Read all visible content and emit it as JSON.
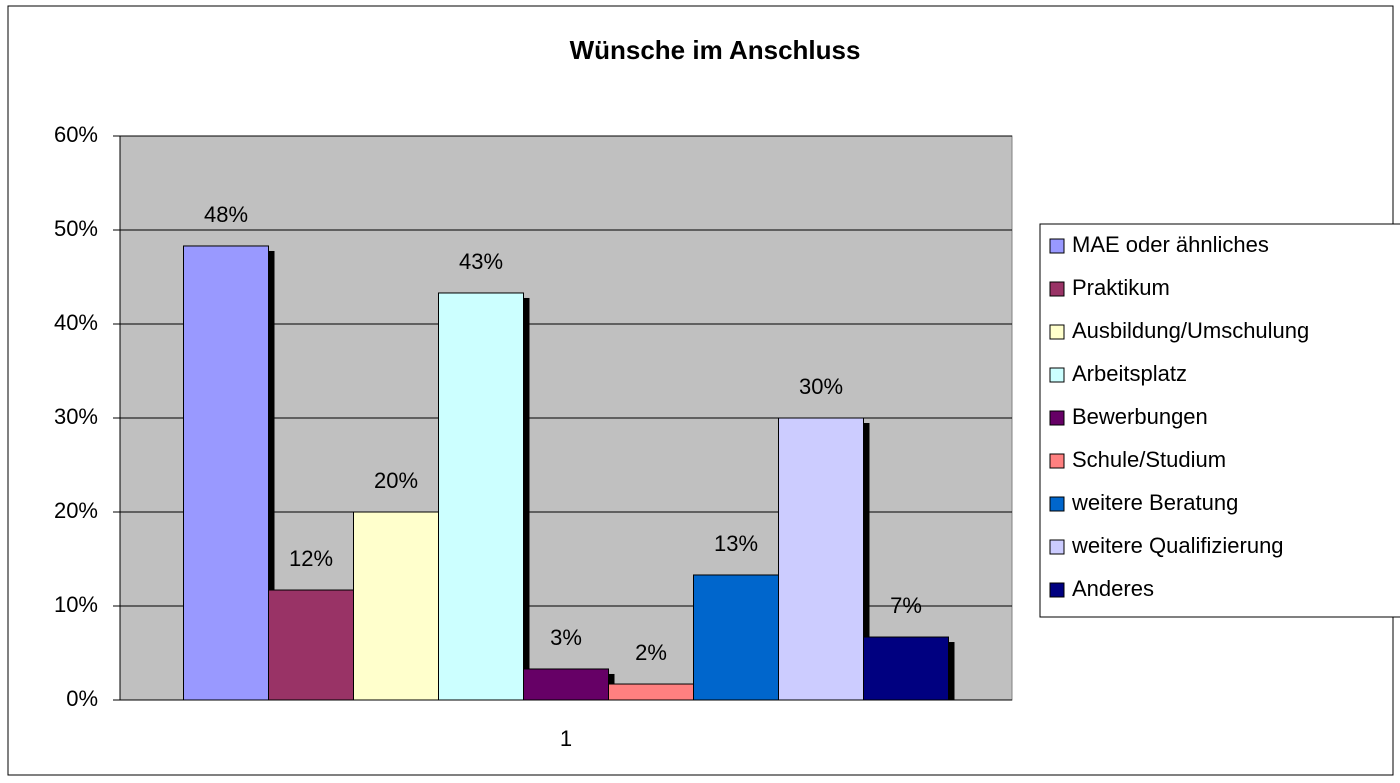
{
  "chart_data": {
    "type": "bar",
    "title": "Wünsche im  Anschluss",
    "categories": [
      "1"
    ],
    "series": [
      {
        "name": "MAE oder ähnliches",
        "color": "#9999ff",
        "values": [
          48.3
        ],
        "value_labels": [
          "48%"
        ]
      },
      {
        "name": "Praktikum",
        "color": "#993366",
        "values": [
          11.7
        ],
        "value_labels": [
          "12%"
        ]
      },
      {
        "name": "Ausbildung/Umschulung",
        "color": "#ffffcc",
        "values": [
          20
        ],
        "value_labels": [
          "20%"
        ]
      },
      {
        "name": "Arbeitsplatz",
        "color": "#ccffff",
        "values": [
          43.3
        ],
        "value_labels": [
          "43%"
        ]
      },
      {
        "name": "Bewerbungen",
        "color": "#660066",
        "values": [
          3.3
        ],
        "value_labels": [
          "3%"
        ]
      },
      {
        "name": "Schule/Studium",
        "color": "#ff8080",
        "values": [
          1.7
        ],
        "value_labels": [
          "2%"
        ]
      },
      {
        "name": "weitere Beratung",
        "color": "#0066cc",
        "values": [
          13.3
        ],
        "value_labels": [
          "13%"
        ]
      },
      {
        "name": "weitere Qualifizierung",
        "color": "#ccccff",
        "values": [
          30
        ],
        "value_labels": [
          "30%"
        ]
      },
      {
        "name": "Anderes",
        "color": "#000080",
        "values": [
          6.7
        ],
        "value_labels": [
          "7%"
        ]
      }
    ],
    "ylim": [
      0,
      60
    ],
    "yticks": [
      {
        "value": 0,
        "label": "0%"
      },
      {
        "value": 10,
        "label": "10%"
      },
      {
        "value": 20,
        "label": "20%"
      },
      {
        "value": 30,
        "label": "30%"
      },
      {
        "value": 40,
        "label": "40%"
      },
      {
        "value": 50,
        "label": "50%"
      },
      {
        "value": 60,
        "label": "60%"
      }
    ],
    "grid": true,
    "legend": "right"
  }
}
